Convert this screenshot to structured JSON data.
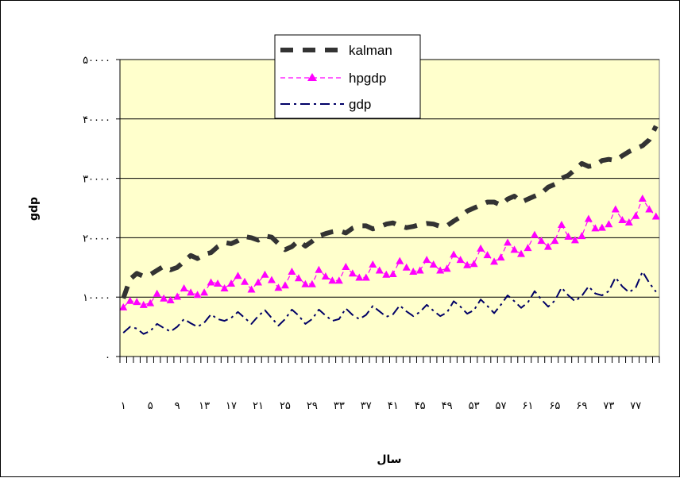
{
  "chart_data": {
    "type": "line",
    "title": "",
    "xlabel": "سال",
    "ylabel": "gdp",
    "ylim": [
      0,
      50000
    ],
    "yticks": [
      0,
      10000,
      20000,
      30000,
      40000,
      50000
    ],
    "ytick_labels": [
      "۰",
      "۱۰۰۰۰",
      "۲۰۰۰۰",
      "۳۰۰۰۰",
      "۴۰۰۰۰",
      "۵۰۰۰۰"
    ],
    "xtick_labels": [
      "۱",
      "۵",
      "۹",
      "۱۳",
      "۱۷",
      "۲۱",
      "۲۵",
      "۲۹",
      "۳۳",
      "۳۷",
      "۴۱",
      "۴۵",
      "۴۹",
      "۵۳",
      "۵۷",
      "۶۱",
      "۶۵",
      "۶۹",
      "۷۳",
      "۷۷"
    ],
    "legend_position": "top-center",
    "plot_background": "#ffffcc",
    "grid": true,
    "n_points": 80,
    "series": [
      {
        "name": "kalman",
        "color": "#333333",
        "style": "long-dash",
        "values": [
          9800,
          13000,
          14000,
          13500,
          13800,
          14500,
          15200,
          14600,
          15000,
          16000,
          17000,
          16500,
          17200,
          17500,
          18500,
          19200,
          19000,
          19500,
          20200,
          20000,
          19600,
          20300,
          20100,
          19000,
          18000,
          18500,
          19500,
          18600,
          19400,
          20300,
          20700,
          21000,
          21200,
          20800,
          21600,
          22000,
          22000,
          21500,
          21800,
          22300,
          22500,
          22000,
          21700,
          21900,
          22200,
          22400,
          22300,
          21900,
          22000,
          22800,
          23500,
          24500,
          25000,
          25500,
          26000,
          26000,
          25500,
          26500,
          27000,
          26000,
          26500,
          27000,
          27500,
          28500,
          29000,
          30000,
          30500,
          31500,
          32500,
          32000,
          32200,
          33000,
          33200,
          33000,
          33800,
          34500,
          35000,
          35500,
          36500,
          38800
        ]
      },
      {
        "name": "hpgdp",
        "color": "#ff00ff",
        "style": "dashed-triangle",
        "values": [
          8300,
          9400,
          9200,
          8700,
          9000,
          10600,
          9800,
          9500,
          10100,
          11500,
          10800,
          10400,
          10800,
          12500,
          12300,
          11500,
          12300,
          13600,
          12600,
          11300,
          12500,
          13800,
          12900,
          11600,
          12000,
          14300,
          13200,
          12200,
          12200,
          14600,
          13500,
          12800,
          12800,
          15100,
          14000,
          13300,
          13300,
          15500,
          14500,
          13800,
          13900,
          16100,
          15000,
          14300,
          14500,
          16300,
          15500,
          14500,
          14800,
          17200,
          16300,
          15400,
          15600,
          18200,
          17100,
          16000,
          16700,
          19200,
          18000,
          17300,
          18300,
          20500,
          19500,
          18500,
          19500,
          22200,
          20200,
          19600,
          20300,
          23200,
          21600,
          21700,
          22300,
          24800,
          23000,
          22600,
          23700,
          26600,
          24800,
          23600
        ]
      },
      {
        "name": "gdp",
        "color": "#000066",
        "style": "dash-dot",
        "values": [
          4000,
          5000,
          4700,
          3800,
          4300,
          5500,
          4800,
          4200,
          5000,
          6300,
          5600,
          5000,
          5700,
          7100,
          6300,
          6000,
          6500,
          7500,
          6500,
          5500,
          6800,
          7800,
          6500,
          5200,
          6300,
          7900,
          6900,
          5500,
          6300,
          7900,
          6900,
          6000,
          6300,
          8100,
          7000,
          6300,
          7000,
          8500,
          7600,
          6700,
          7100,
          8600,
          7600,
          6800,
          7500,
          8700,
          7700,
          6800,
          7400,
          9300,
          8400,
          7200,
          7800,
          9600,
          8500,
          7300,
          8700,
          10300,
          9300,
          8200,
          9100,
          11000,
          9600,
          8400,
          9400,
          11600,
          10300,
          9300,
          10200,
          11800,
          10600,
          10300,
          11000,
          13300,
          11800,
          10800,
          11600,
          14300,
          12400,
          10900
        ]
      }
    ]
  }
}
